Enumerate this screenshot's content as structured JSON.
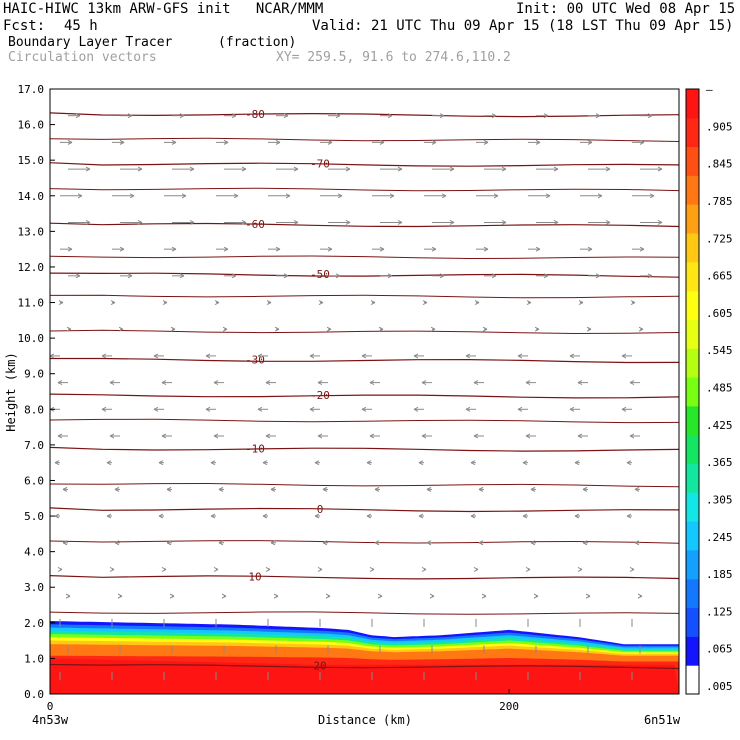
{
  "header": {
    "title_line": "HAIC-HIWC 13km ARW-GFS init   NCAR/MMM",
    "init": "Init: 00 UTC Wed 08 Apr 15",
    "fcst_label": "Fcst:",
    "fcst_value": "45 h",
    "valid": "Valid: 21 UTC Thu 09 Apr 15 (18 LST Thu 09 Apr 15)",
    "field_name": "Boundary Layer Tracer",
    "field_units": "(fraction)",
    "vectors_label": "Circulation vectors",
    "xy_label": "XY= 259.5, 91.6 to 274.6,110.2"
  },
  "colors": {
    "contour": "#7a1414",
    "vector": "#8a8a8a",
    "colorbar": [
      "#ffffff",
      "#1414ff",
      "#1450ff",
      "#1478ff",
      "#14a0ff",
      "#14c8ff",
      "#14e6e6",
      "#14e6a0",
      "#14e664",
      "#28e628",
      "#78ff14",
      "#b4ff14",
      "#e6ff14",
      "#ffff14",
      "#ffe614",
      "#ffc814",
      "#ffa014",
      "#ff7814",
      "#ff5014",
      "#ff2814",
      "#ff1414"
    ]
  },
  "chart_data": {
    "type": "heatmap",
    "xlabel": "Distance (km)",
    "ylabel": "Height (km)",
    "xlim": [
      0,
      274
    ],
    "ylim": [
      0,
      17
    ],
    "x_ticks": [
      0,
      200
    ],
    "y_ticks": [
      "0.0",
      "1.0",
      "2.0",
      "3.0",
      "4.0",
      "5.0",
      "6.0",
      "7.0",
      "8.0",
      "9.0",
      "10.0",
      "11.0",
      "12.0",
      "13.0",
      "14.0",
      "15.0",
      "16.0",
      "17.0"
    ],
    "left_endpoint": "4n53w",
    "right_endpoint": "6n51w",
    "colorbar_labels": [
      "–",
      ".905",
      ".845",
      ".785",
      ".725",
      ".665",
      ".605",
      ".545",
      ".485",
      ".425",
      ".365",
      ".305",
      ".245",
      ".185",
      ".125",
      ".065",
      ".005"
    ],
    "contours": [
      {
        "value": "-80",
        "height": 16.3
      },
      {
        "value": "-70",
        "height": 14.9
      },
      {
        "value": "-60",
        "height": 13.2
      },
      {
        "value": "-50",
        "height": 11.8
      },
      {
        "value": "-30",
        "height": 9.4
      },
      {
        "value": "-20",
        "height": 8.4
      },
      {
        "value": "-10",
        "height": 6.9
      },
      {
        "value": "0",
        "height": 5.2
      },
      {
        "value": "10",
        "height": 3.3
      },
      {
        "value": "20",
        "height": 0.8
      }
    ],
    "tracer_top_km": {
      "x": [
        0,
        40,
        80,
        120,
        130,
        140,
        150,
        170,
        200,
        230,
        250,
        274
      ],
      "top": [
        2.05,
        2.0,
        1.95,
        1.85,
        1.8,
        1.65,
        1.6,
        1.65,
        1.8,
        1.6,
        1.4,
        1.4
      ]
    }
  }
}
